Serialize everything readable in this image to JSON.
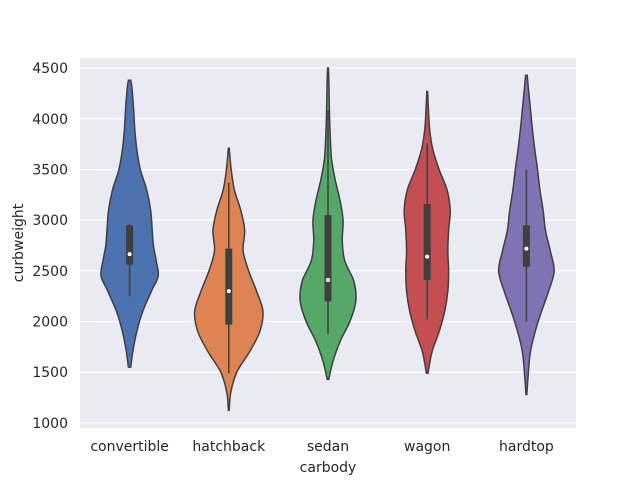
{
  "chart_data": {
    "type": "violin",
    "xlabel": "carbody",
    "ylabel": "curbweight",
    "ylim": [
      950,
      4600
    ],
    "yticks": [
      1000,
      1500,
      2000,
      2500,
      3000,
      3500,
      4000,
      4500
    ],
    "grid": true,
    "categories": [
      "convertible",
      "hatchback",
      "sedan",
      "wagon",
      "hardtop"
    ],
    "colors": [
      "#4c72b0",
      "#dd8452",
      "#55a868",
      "#c44e52",
      "#8172b3"
    ],
    "violins": [
      {
        "category": "convertible",
        "min": 2250,
        "q1": 2560,
        "median": 2665,
        "q3": 2950,
        "max": 2960,
        "profile": [
          [
            1550,
            0.03
          ],
          [
            1700,
            0.08
          ],
          [
            1900,
            0.18
          ],
          [
            2100,
            0.33
          ],
          [
            2300,
            0.55
          ],
          [
            2450,
            0.72
          ],
          [
            2600,
            0.67
          ],
          [
            2750,
            0.6
          ],
          [
            2900,
            0.57
          ],
          [
            3100,
            0.53
          ],
          [
            3300,
            0.43
          ],
          [
            3500,
            0.27
          ],
          [
            3700,
            0.18
          ],
          [
            3900,
            0.13
          ],
          [
            4100,
            0.1
          ],
          [
            4300,
            0.06
          ],
          [
            4380,
            0.03
          ]
        ]
      },
      {
        "category": "hatchback",
        "min": 1490,
        "q1": 1970,
        "median": 2300,
        "q3": 2720,
        "max": 3370,
        "profile": [
          [
            1125,
            0.01
          ],
          [
            1300,
            0.05
          ],
          [
            1500,
            0.2
          ],
          [
            1700,
            0.52
          ],
          [
            1900,
            0.78
          ],
          [
            2100,
            0.86
          ],
          [
            2300,
            0.7
          ],
          [
            2500,
            0.5
          ],
          [
            2700,
            0.36
          ],
          [
            2900,
            0.4
          ],
          [
            3100,
            0.3
          ],
          [
            3300,
            0.14
          ],
          [
            3500,
            0.06
          ],
          [
            3710,
            0.01
          ]
        ]
      },
      {
        "category": "sedan",
        "min": 1880,
        "q1": 2200,
        "median": 2410,
        "q3": 3050,
        "max": 4080,
        "profile": [
          [
            1430,
            0.02
          ],
          [
            1600,
            0.12
          ],
          [
            1800,
            0.3
          ],
          [
            2000,
            0.55
          ],
          [
            2200,
            0.7
          ],
          [
            2400,
            0.65
          ],
          [
            2600,
            0.42
          ],
          [
            2800,
            0.36
          ],
          [
            3000,
            0.38
          ],
          [
            3200,
            0.3
          ],
          [
            3400,
            0.18
          ],
          [
            3600,
            0.09
          ],
          [
            3800,
            0.06
          ],
          [
            4000,
            0.04
          ],
          [
            4200,
            0.03
          ],
          [
            4400,
            0.02
          ],
          [
            4500,
            0.01
          ]
        ]
      },
      {
        "category": "wagon",
        "min": 2020,
        "q1": 2410,
        "median": 2640,
        "q3": 3160,
        "max": 3760,
        "profile": [
          [
            1490,
            0.02
          ],
          [
            1700,
            0.12
          ],
          [
            1900,
            0.3
          ],
          [
            2100,
            0.44
          ],
          [
            2300,
            0.52
          ],
          [
            2500,
            0.54
          ],
          [
            2700,
            0.52
          ],
          [
            2900,
            0.54
          ],
          [
            3100,
            0.58
          ],
          [
            3300,
            0.5
          ],
          [
            3500,
            0.3
          ],
          [
            3700,
            0.14
          ],
          [
            3900,
            0.06
          ],
          [
            4100,
            0.03
          ],
          [
            4270,
            0.01
          ]
        ]
      },
      {
        "category": "hardtop",
        "min": 2000,
        "q1": 2540,
        "median": 2720,
        "q3": 2950,
        "max": 3500,
        "profile": [
          [
            1280,
            0.01
          ],
          [
            1500,
            0.05
          ],
          [
            1700,
            0.1
          ],
          [
            1900,
            0.22
          ],
          [
            2100,
            0.38
          ],
          [
            2300,
            0.56
          ],
          [
            2500,
            0.7
          ],
          [
            2700,
            0.6
          ],
          [
            2900,
            0.48
          ],
          [
            3100,
            0.42
          ],
          [
            3300,
            0.34
          ],
          [
            3500,
            0.28
          ],
          [
            3700,
            0.21
          ],
          [
            3900,
            0.15
          ],
          [
            4100,
            0.1
          ],
          [
            4300,
            0.05
          ],
          [
            4430,
            0.02
          ]
        ]
      }
    ]
  }
}
